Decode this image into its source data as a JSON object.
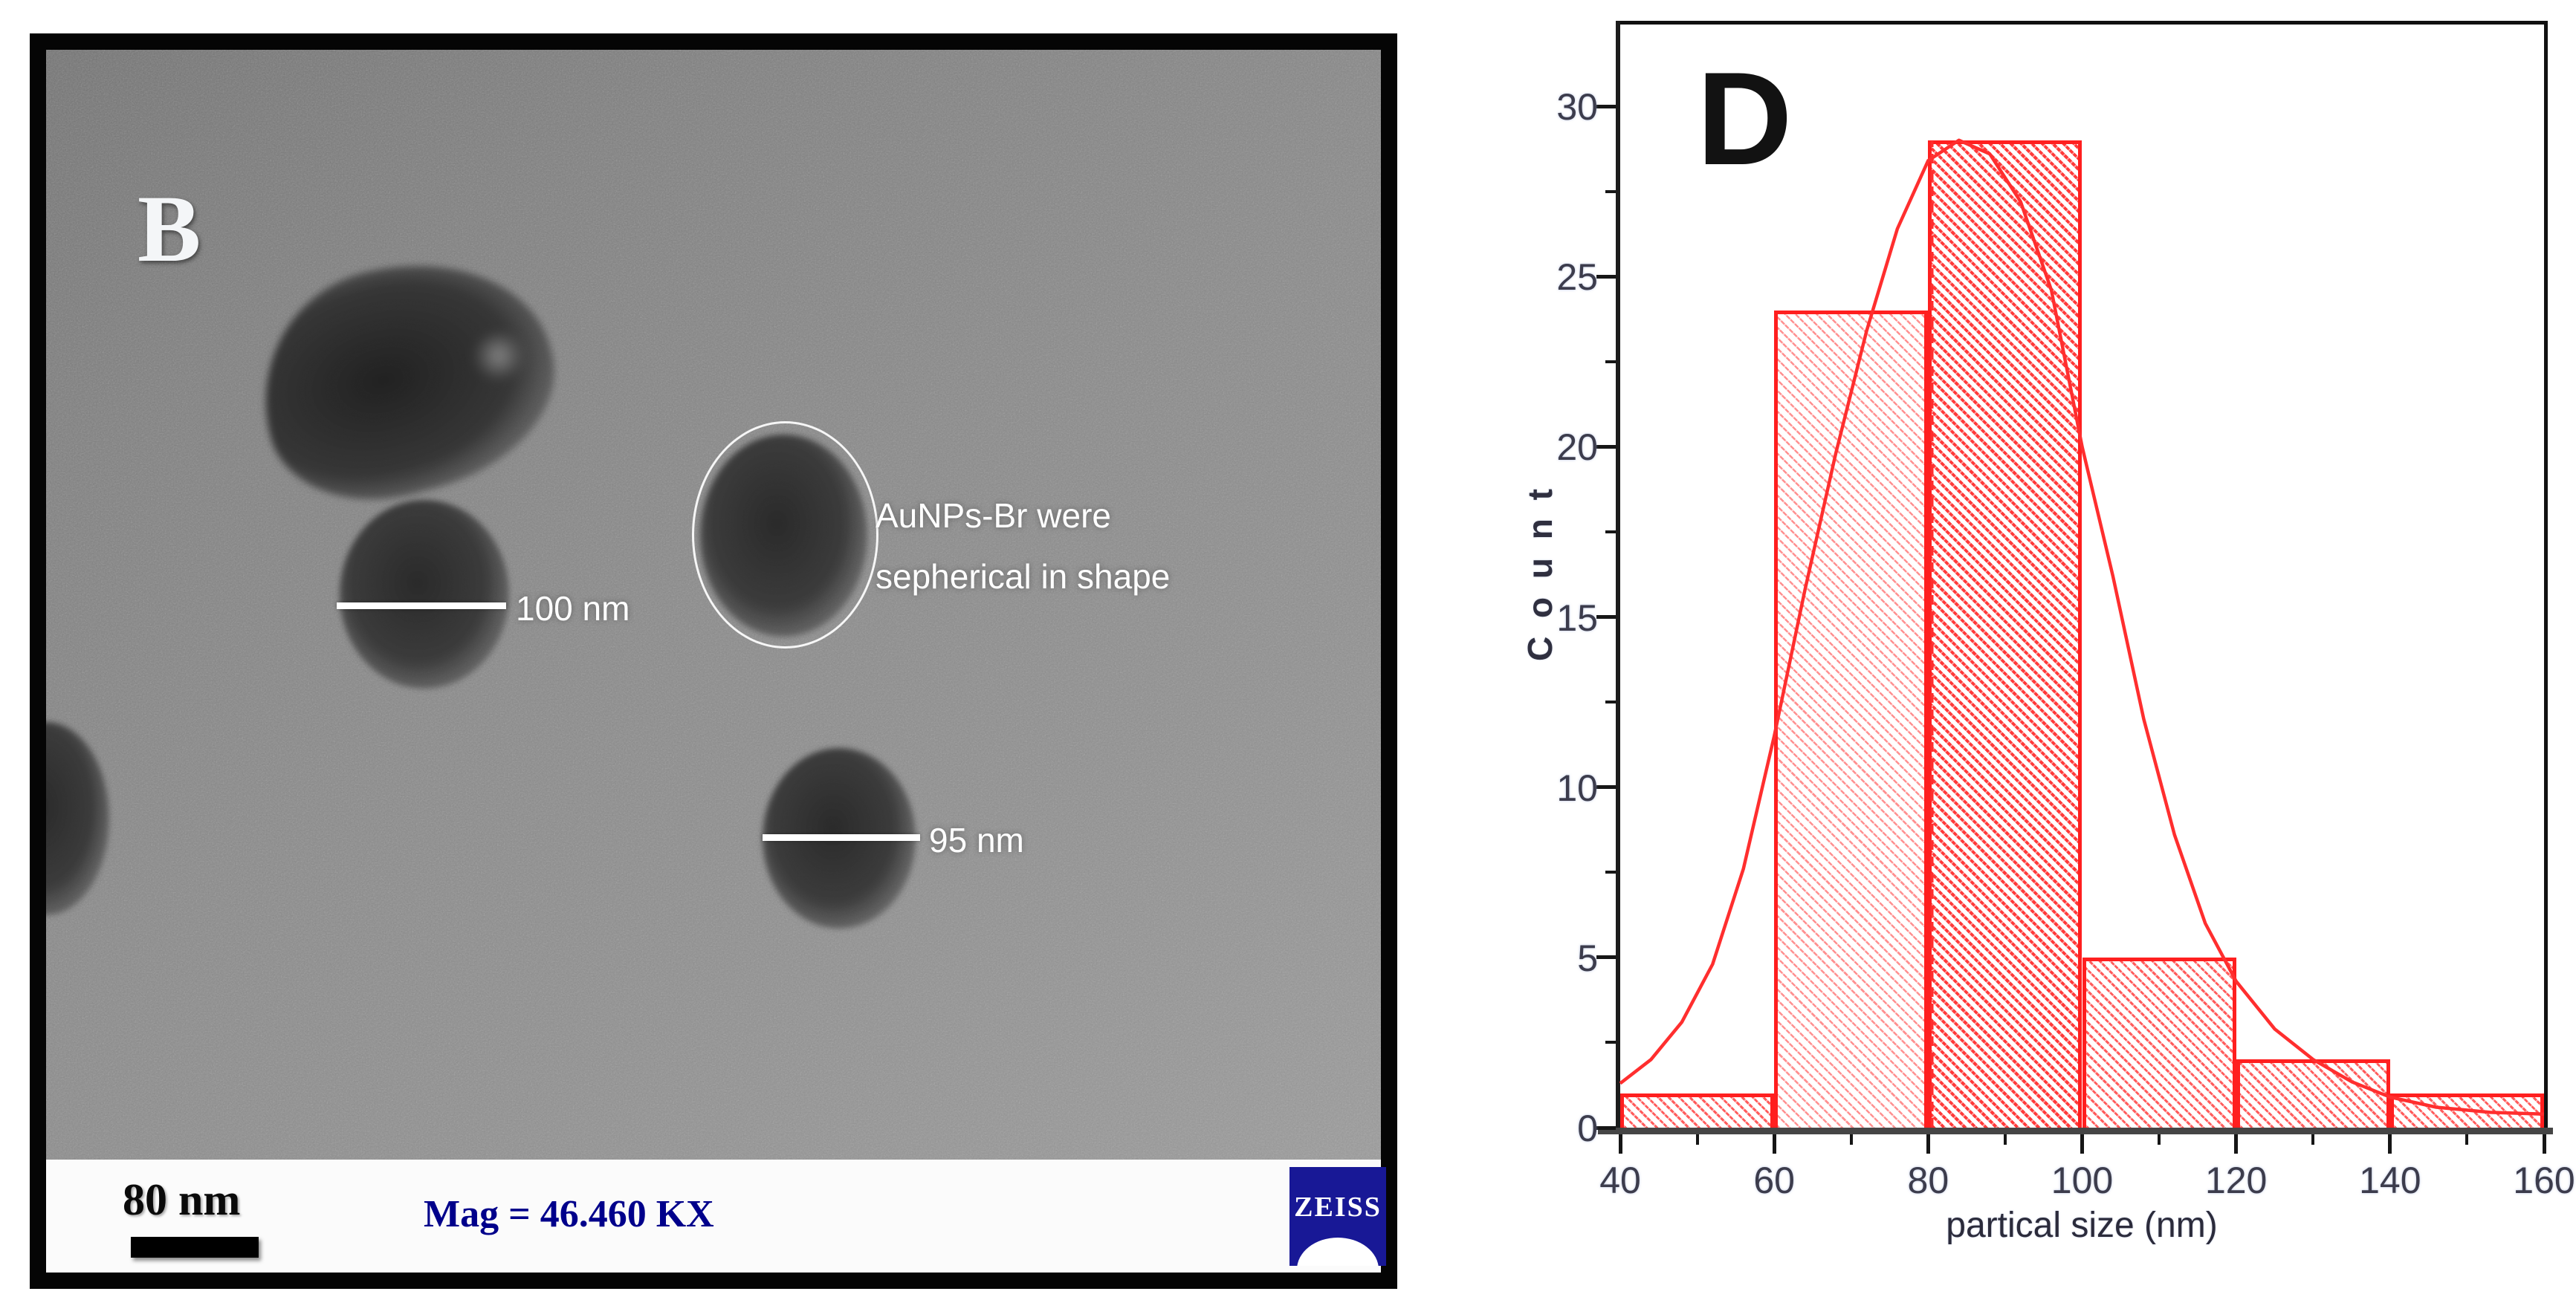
{
  "panel_b": {
    "label": "B",
    "particle_note": {
      "line1": "AuNPs-Br were",
      "line2": "sepherical in shape"
    },
    "measurements": [
      {
        "label": "100 nm"
      },
      {
        "label": "95 nm"
      }
    ],
    "info_bar": {
      "scale_label": "80 nm",
      "magnification": "Mag = 46.460 KX",
      "vendor": "ZEISS"
    }
  },
  "panel_d": {
    "label": "D"
  },
  "colors": {
    "bar_edge": "#ff1f1f",
    "curve": "#ff2e2e",
    "zeiss_navy": "#181896",
    "mag_navy": "#00008b",
    "tick_text": "#3c3c4c"
  },
  "chart_data": {
    "type": "bar",
    "title": "",
    "xlabel": "partical size (nm)",
    "ylabel": "C o u n t",
    "bin_edges": [
      40,
      60,
      80,
      100,
      120,
      140,
      160
    ],
    "categories": [
      "40-60",
      "60-80",
      "80-100",
      "100-120",
      "120-140",
      "140-160"
    ],
    "values": [
      1,
      24,
      29,
      5,
      2,
      1
    ],
    "xlim": [
      40,
      160
    ],
    "ylim": [
      0,
      32.4
    ],
    "xticks": [
      40,
      60,
      80,
      100,
      120,
      140,
      160
    ],
    "yticks": [
      0,
      5,
      10,
      15,
      20,
      25,
      30
    ],
    "minor_xticks": [
      50,
      70,
      90,
      110,
      130,
      150
    ],
    "minor_yticks": [
      2.5,
      7.5,
      12.5,
      17.5,
      22.5,
      27.5
    ],
    "grid": false,
    "legend": null,
    "hatch": "back-diagonal-dashed-red",
    "fit_curve": {
      "color": "#ff2e2e",
      "x": [
        40,
        44,
        48,
        52,
        56,
        60,
        64,
        68,
        72,
        76,
        80,
        84,
        88,
        92,
        96,
        100,
        104,
        108,
        112,
        116,
        120,
        125,
        130,
        135,
        140,
        146,
        153,
        160
      ],
      "y": [
        1.3,
        2.0,
        3.1,
        4.8,
        7.6,
        11.5,
        15.8,
        19.8,
        23.4,
        26.4,
        28.4,
        29.0,
        28.6,
        27.2,
        24.6,
        20.0,
        16.2,
        12.0,
        8.6,
        6.0,
        4.3,
        2.9,
        2.0,
        1.35,
        0.9,
        0.6,
        0.45,
        0.4
      ]
    },
    "center_line": {
      "x": 80.5,
      "y_top": 29,
      "style": "dashed",
      "color": "#ff2e2e"
    }
  }
}
